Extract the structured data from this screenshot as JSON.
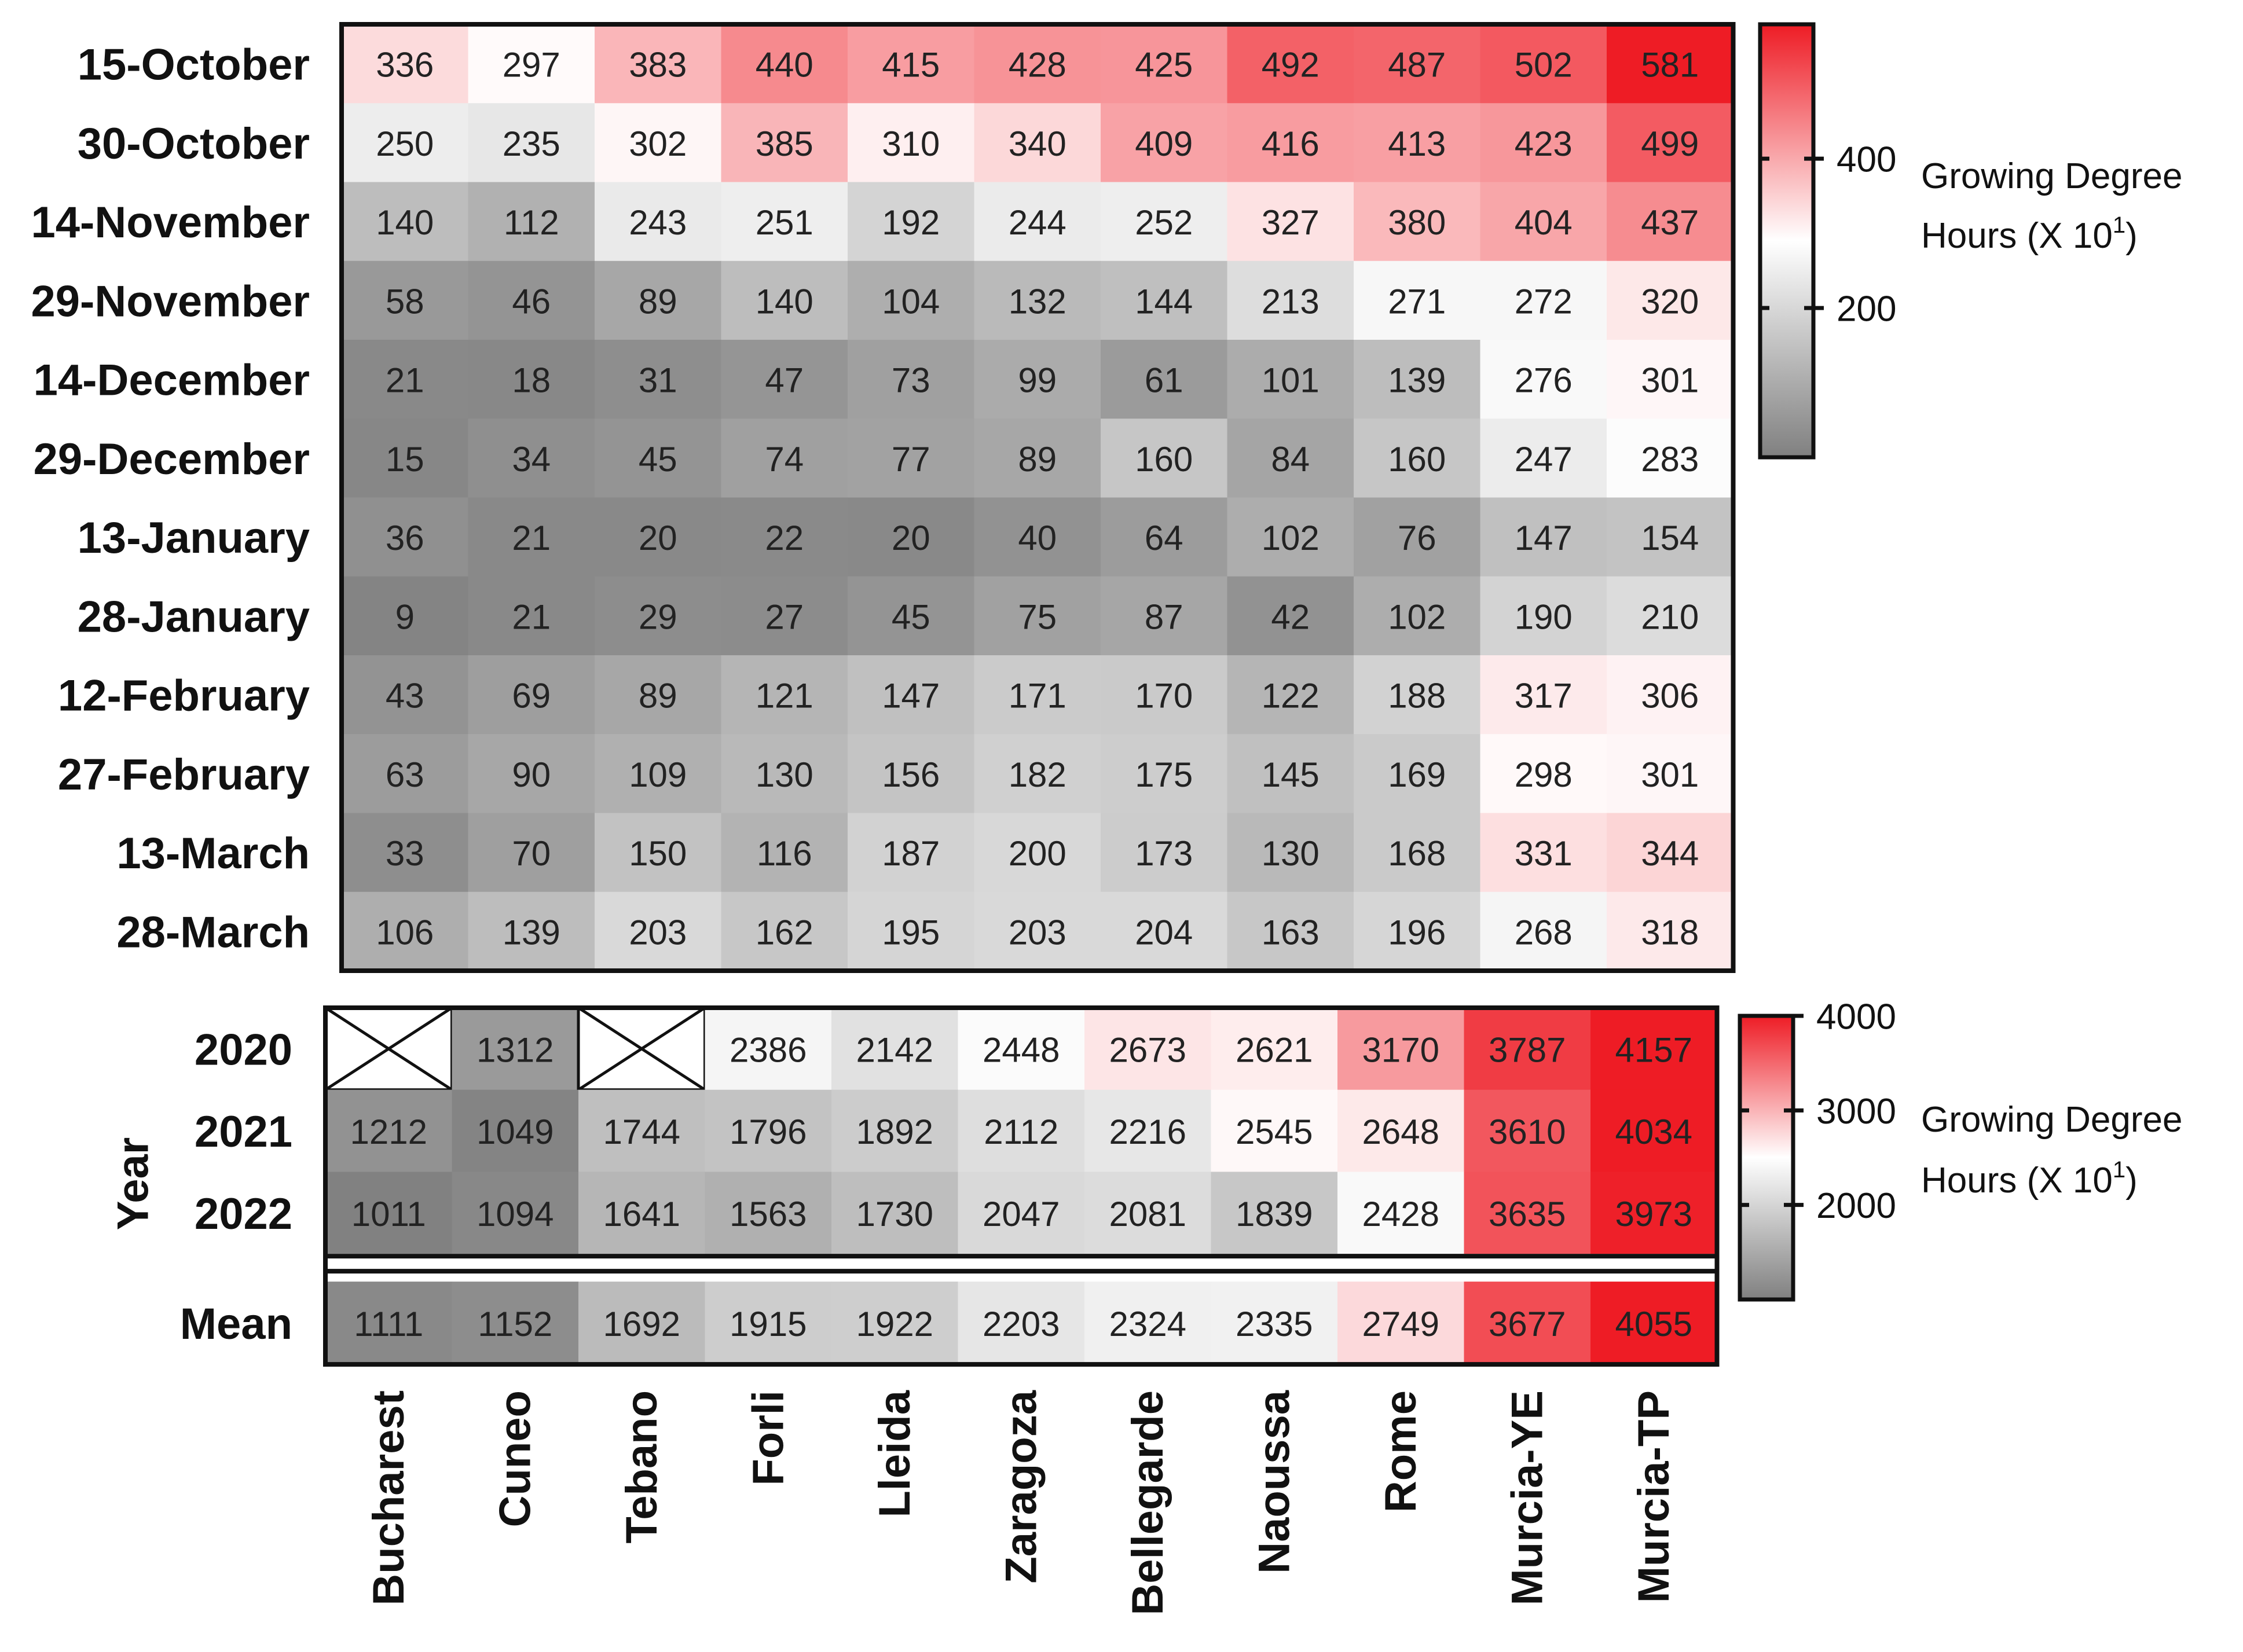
{
  "chart_data": [
    {
      "type": "heatmap",
      "title": "",
      "ylabel": "",
      "columns": [
        "Bucharest",
        "Cuneo",
        "Tebano",
        "Forli",
        "Lleida",
        "Zaragoza",
        "Bellegarde",
        "Naoussa",
        "Rome",
        "Murcia-YE",
        "Murcia-TP"
      ],
      "rows": [
        "15-October",
        "30-October",
        "14-November",
        "29-November",
        "14-December",
        "29-December",
        "13-January",
        "28-January",
        "12-February",
        "27-February",
        "13-March",
        "28-March"
      ],
      "values": [
        [
          336,
          297,
          383,
          440,
          415,
          428,
          425,
          492,
          487,
          502,
          581
        ],
        [
          250,
          235,
          302,
          385,
          310,
          340,
          409,
          416,
          413,
          423,
          499
        ],
        [
          140,
          112,
          243,
          251,
          192,
          244,
          252,
          327,
          380,
          404,
          437
        ],
        [
          58,
          46,
          89,
          140,
          104,
          132,
          144,
          213,
          271,
          272,
          320
        ],
        [
          21,
          18,
          31,
          47,
          73,
          99,
          61,
          101,
          139,
          276,
          301
        ],
        [
          15,
          34,
          45,
          74,
          77,
          89,
          160,
          84,
          160,
          247,
          283
        ],
        [
          36,
          21,
          20,
          22,
          20,
          40,
          64,
          102,
          76,
          147,
          154
        ],
        [
          9,
          21,
          29,
          27,
          45,
          75,
          87,
          42,
          102,
          190,
          210
        ],
        [
          43,
          69,
          89,
          121,
          147,
          171,
          170,
          122,
          188,
          317,
          306
        ],
        [
          63,
          90,
          109,
          130,
          156,
          182,
          175,
          145,
          169,
          298,
          301
        ],
        [
          33,
          70,
          150,
          116,
          187,
          200,
          173,
          130,
          168,
          331,
          344
        ],
        [
          106,
          139,
          203,
          162,
          195,
          203,
          204,
          163,
          196,
          268,
          318
        ]
      ],
      "colorscale": {
        "low": "#808080",
        "mid": "#ffffff",
        "high": "#ee1c25",
        "min": 0,
        "mid_value": 290,
        "max": 580
      },
      "colorbar": {
        "ticks": [
          200,
          400
        ],
        "title_line1": "Growing Degree",
        "title_line2": "Hours (X 10",
        "exponent": "1",
        "title_close": ")"
      }
    },
    {
      "type": "heatmap",
      "title": "",
      "ylabel": "Year",
      "columns": [
        "Bucharest",
        "Cuneo",
        "Tebano",
        "Forli",
        "Lleida",
        "Zaragoza",
        "Bellegarde",
        "Naoussa",
        "Rome",
        "Murcia-YE",
        "Murcia-TP"
      ],
      "rows": [
        "2020",
        "2021",
        "2022"
      ],
      "values": [
        [
          null,
          1312,
          null,
          2386,
          2142,
          2448,
          2673,
          2621,
          3170,
          3787,
          4157
        ],
        [
          1212,
          1049,
          1744,
          1796,
          1892,
          2112,
          2216,
          2545,
          2648,
          3610,
          4034
        ],
        [
          1011,
          1094,
          1641,
          1563,
          1730,
          2047,
          2081,
          1839,
          2428,
          3635,
          3973
        ]
      ],
      "summary_row": {
        "label": "Mean",
        "values": [
          1111,
          1152,
          1692,
          1915,
          1922,
          2203,
          2324,
          2335,
          2749,
          3677,
          4055
        ]
      },
      "missing_marker": "cross",
      "colorscale": {
        "low": "#808080",
        "mid": "#ffffff",
        "high": "#ee1c25",
        "min": 1000,
        "mid_value": 2500,
        "max": 4000
      },
      "colorbar": {
        "ticks": [
          2000,
          3000,
          4000
        ],
        "title_line1": "Growing Degree",
        "title_line2": "Hours (X 10",
        "exponent": "1",
        "title_close": ")"
      }
    }
  ]
}
